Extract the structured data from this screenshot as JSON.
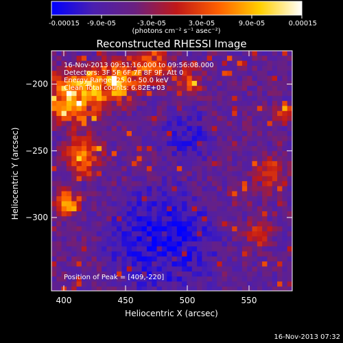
{
  "colorbar": {
    "tick_labels": [
      "-0.00015",
      "-9.0e-05",
      "-3.0e-05",
      "3.0e-05",
      "9.0e-05",
      "0.00015"
    ],
    "unit_label": "(photons cm⁻² s⁻¹ asec⁻²)"
  },
  "chart_data": {
    "type": "heatmap",
    "title": "Reconstructed RHESSI Image",
    "xlabel": "Heliocentric X (arcsec)",
    "ylabel": "Heliocentric Y (arcsec)",
    "xlim": [
      390,
      585
    ],
    "ylim": [
      -355,
      -175
    ],
    "x_ticks": [
      400,
      450,
      500,
      550
    ],
    "y_ticks": [
      -200,
      -250,
      -300
    ],
    "x_tick_labels": [
      "400",
      "450",
      "500",
      "550"
    ],
    "y_tick_labels": [
      "−200",
      "−250",
      "−300"
    ],
    "colorbar_range": [
      -0.00015,
      0.00015
    ],
    "colormap": [
      "#0000ff",
      "#4a1fb0",
      "#6a2080",
      "#c01818",
      "#ff6000",
      "#ffd000",
      "#ffffff"
    ],
    "peak_position": [
      409,
      -220
    ],
    "annotations": [
      "16-Nov-2013 09:51:16.000 to 09:56:08.000",
      "Detectors: 3F 5F 6F 7F 8F 9F, Att 0",
      "Energy Range: 25.0 - 50.0 keV",
      "Clean     Total counts: 6.82E+03"
    ],
    "peak_label": "Position of Peak = [409,-220]"
  },
  "footer": {
    "timestamp": "16-Nov-2013 07:32"
  }
}
